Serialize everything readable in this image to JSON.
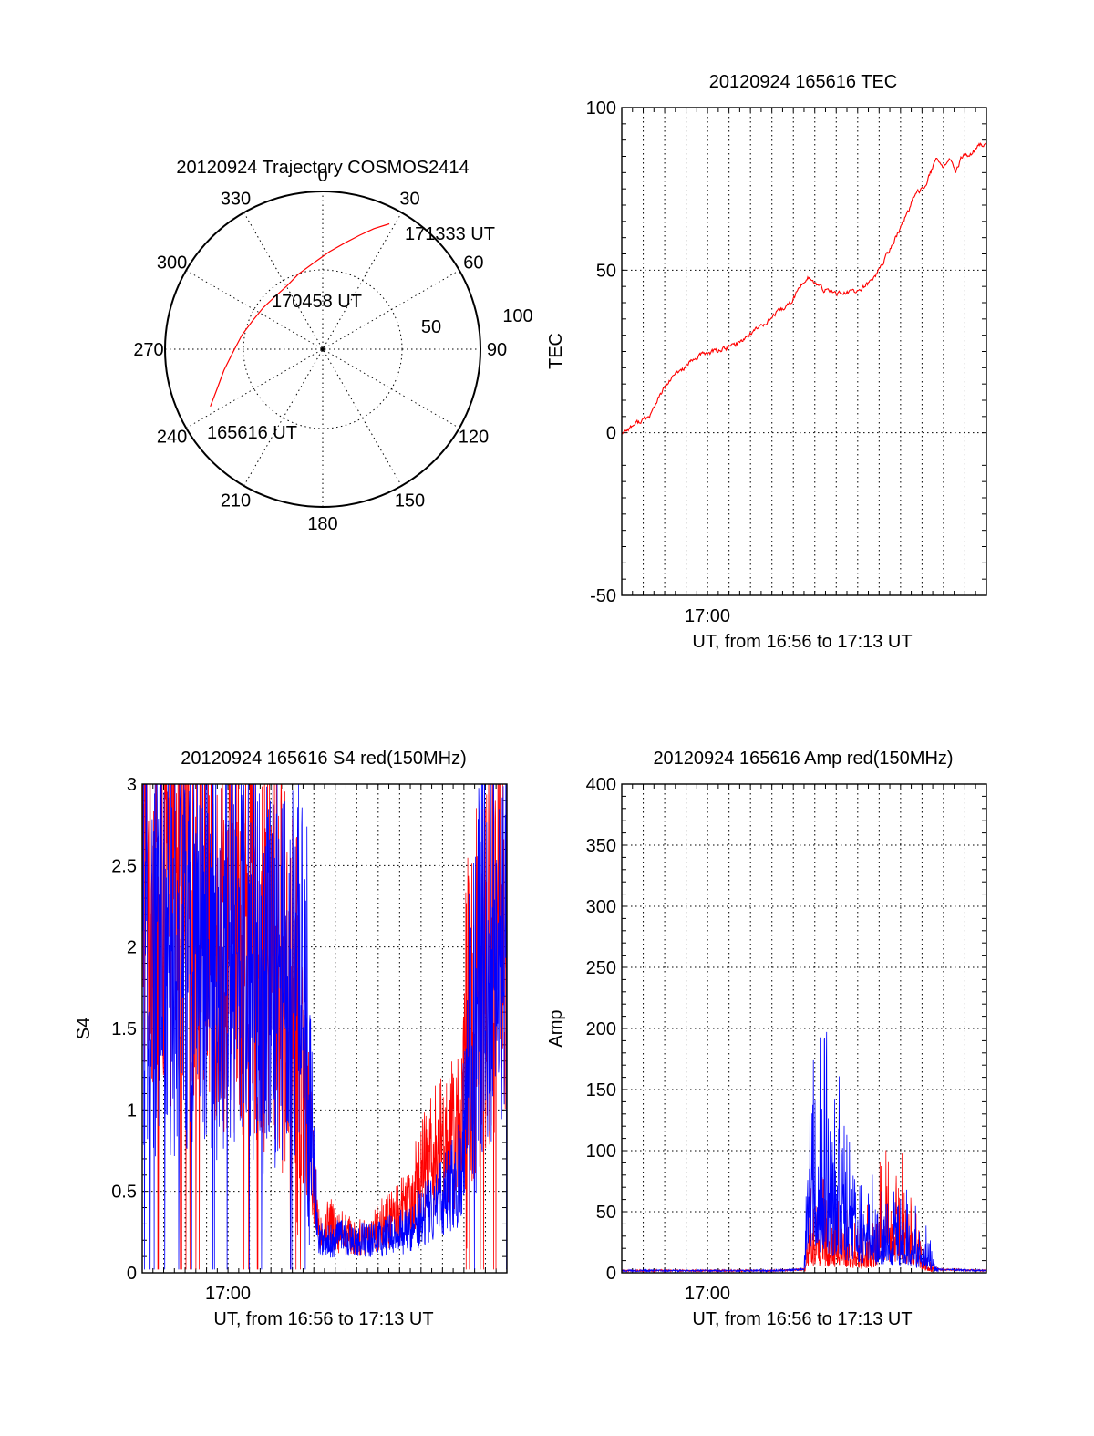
{
  "colors": {
    "red": "#ff0000",
    "blue": "#0000ff",
    "axis": "#000000",
    "background": "#ffffff"
  },
  "chart_data": [
    {
      "id": "trajectory",
      "type": "polar",
      "title": "20120924 Trajectory COSMOS2414",
      "azimuth_labels": [
        "0",
        "30",
        "60",
        "90",
        "120",
        "150",
        "180",
        "210",
        "240",
        "270",
        "300",
        "330"
      ],
      "radial_labels": [
        "50",
        "100"
      ],
      "track": {
        "color": "#ff0000",
        "points": [
          {
            "az": 243,
            "r": 80
          },
          {
            "az": 249,
            "r": 72
          },
          {
            "az": 258,
            "r": 64
          },
          {
            "az": 268,
            "r": 57
          },
          {
            "az": 280,
            "r": 52
          },
          {
            "az": 292,
            "r": 48
          },
          {
            "az": 305,
            "r": 46
          },
          {
            "az": 318,
            "r": 45
          },
          {
            "az": 330,
            "r": 46
          },
          {
            "az": 342,
            "r": 50
          },
          {
            "az": 354,
            "r": 55
          },
          {
            "az": 4,
            "r": 62
          },
          {
            "az": 12,
            "r": 69
          },
          {
            "az": 18,
            "r": 76
          },
          {
            "az": 23,
            "r": 83
          },
          {
            "az": 28,
            "r": 90
          }
        ]
      },
      "annotations": [
        "171333 UT",
        "170458 UT",
        "165616 UT"
      ]
    },
    {
      "id": "tec",
      "type": "line",
      "title": "20120924 165616 TEC",
      "ylabel": "TEC",
      "xlabel": "UT, from 16:56 to 17:13 UT",
      "xtick_labels": [
        "17:00"
      ],
      "yticks": [
        -50,
        0,
        50,
        100
      ],
      "ylim": [
        -50,
        100
      ],
      "xlim": [
        16.9333,
        17.2167
      ],
      "series": [
        {
          "color": "#ff0000",
          "x": [
            16.9333,
            16.945,
            16.955,
            16.96,
            16.965,
            16.975,
            16.985,
            16.995,
            17.005,
            17.015,
            17.025,
            17.035,
            17.045,
            17.055,
            17.065,
            17.072,
            17.078,
            17.083,
            17.09,
            17.1,
            17.11,
            17.12,
            17.13,
            17.14,
            17.15,
            17.16,
            17.17,
            17.178,
            17.183,
            17.188,
            17.193,
            17.198,
            17.203,
            17.21,
            17.2167
          ],
          "y": [
            0,
            3,
            5,
            9,
            13,
            18,
            21,
            24,
            25,
            26,
            28,
            31,
            34,
            37,
            40,
            45,
            48,
            46,
            44,
            43,
            43,
            44,
            48,
            55,
            63,
            72,
            77,
            84,
            82,
            84,
            80,
            85,
            85,
            88,
            89
          ]
        }
      ]
    },
    {
      "id": "s4",
      "type": "line",
      "title": "20120924 165616 S4 red(150MHz)",
      "ylabel": "S4",
      "xlabel": "UT, from 16:56 to 17:13 UT",
      "xtick_labels": [
        "17:00"
      ],
      "yticks": [
        0,
        0.5,
        1,
        1.5,
        2,
        2.5,
        3
      ],
      "ytick_labels": [
        "0",
        "0.5",
        "1",
        "1.5",
        "2",
        "2.5",
        "3"
      ],
      "ylim": [
        0,
        3
      ],
      "xlim": [
        16.9333,
        17.2167
      ],
      "series": [
        {
          "color": "#ff0000",
          "x": [
            16.9333,
            16.95,
            16.965,
            16.98,
            16.995,
            17.01,
            17.025,
            17.04,
            17.05,
            17.06,
            17.07,
            17.08,
            17.09,
            17.1,
            17.11,
            17.12,
            17.13,
            17.14,
            17.15,
            17.16,
            17.17,
            17.18,
            17.19,
            17.2,
            17.21,
            17.2167
          ],
          "y": [
            2.4,
            2.3,
            2.2,
            2.2,
            2.1,
            2.1,
            2.0,
            1.9,
            1.6,
            1.1,
            0.25,
            0.3,
            0.25,
            0.2,
            0.25,
            0.3,
            0.35,
            0.45,
            0.6,
            0.75,
            0.8,
            0.9,
            1.6,
            2.0,
            2.1,
            2.2
          ]
        },
        {
          "color": "#0000ff",
          "x": [
            16.9333,
            16.95,
            16.965,
            16.98,
            16.995,
            17.01,
            17.025,
            17.04,
            17.05,
            17.06,
            17.07,
            17.08,
            17.09,
            17.1,
            17.11,
            17.12,
            17.13,
            17.14,
            17.15,
            17.16,
            17.17,
            17.18,
            17.19,
            17.2,
            17.21,
            17.2167
          ],
          "y": [
            1.9,
            2.0,
            1.9,
            2.0,
            1.9,
            2.0,
            1.8,
            1.9,
            1.8,
            1.7,
            0.2,
            0.2,
            0.22,
            0.2,
            0.2,
            0.22,
            0.25,
            0.25,
            0.35,
            0.4,
            0.5,
            0.6,
            1.5,
            2.0,
            2.1,
            2.2
          ]
        }
      ]
    },
    {
      "id": "amp",
      "type": "line",
      "title": "20120924 165616 Amp red(150MHz)",
      "ylabel": "Amp",
      "xlabel": "UT, from 16:56 to 17:13 UT",
      "xtick_labels": [
        "17:00"
      ],
      "yticks": [
        0,
        50,
        100,
        150,
        200,
        250,
        300,
        350,
        400
      ],
      "ylim": [
        0,
        400
      ],
      "xlim": [
        16.9333,
        17.2167
      ],
      "series": [
        {
          "color": "#ff0000",
          "x": [
            16.9333,
            17.0,
            17.05,
            17.075,
            17.08,
            17.09,
            17.1,
            17.11,
            17.12,
            17.13,
            17.14,
            17.15,
            17.16,
            17.17,
            17.18,
            17.2167
          ],
          "y": [
            1,
            1,
            1,
            2,
            40,
            35,
            30,
            25,
            20,
            30,
            60,
            55,
            35,
            10,
            2,
            1
          ]
        },
        {
          "color": "#0000ff",
          "x": [
            16.9333,
            17.0,
            17.05,
            17.075,
            17.08,
            17.09,
            17.1,
            17.11,
            17.12,
            17.13,
            17.14,
            17.15,
            17.16,
            17.17,
            17.18,
            17.2167
          ],
          "y": [
            1,
            1,
            1,
            2,
            110,
            100,
            80,
            60,
            45,
            45,
            40,
            35,
            30,
            20,
            2,
            1
          ]
        }
      ]
    }
  ]
}
